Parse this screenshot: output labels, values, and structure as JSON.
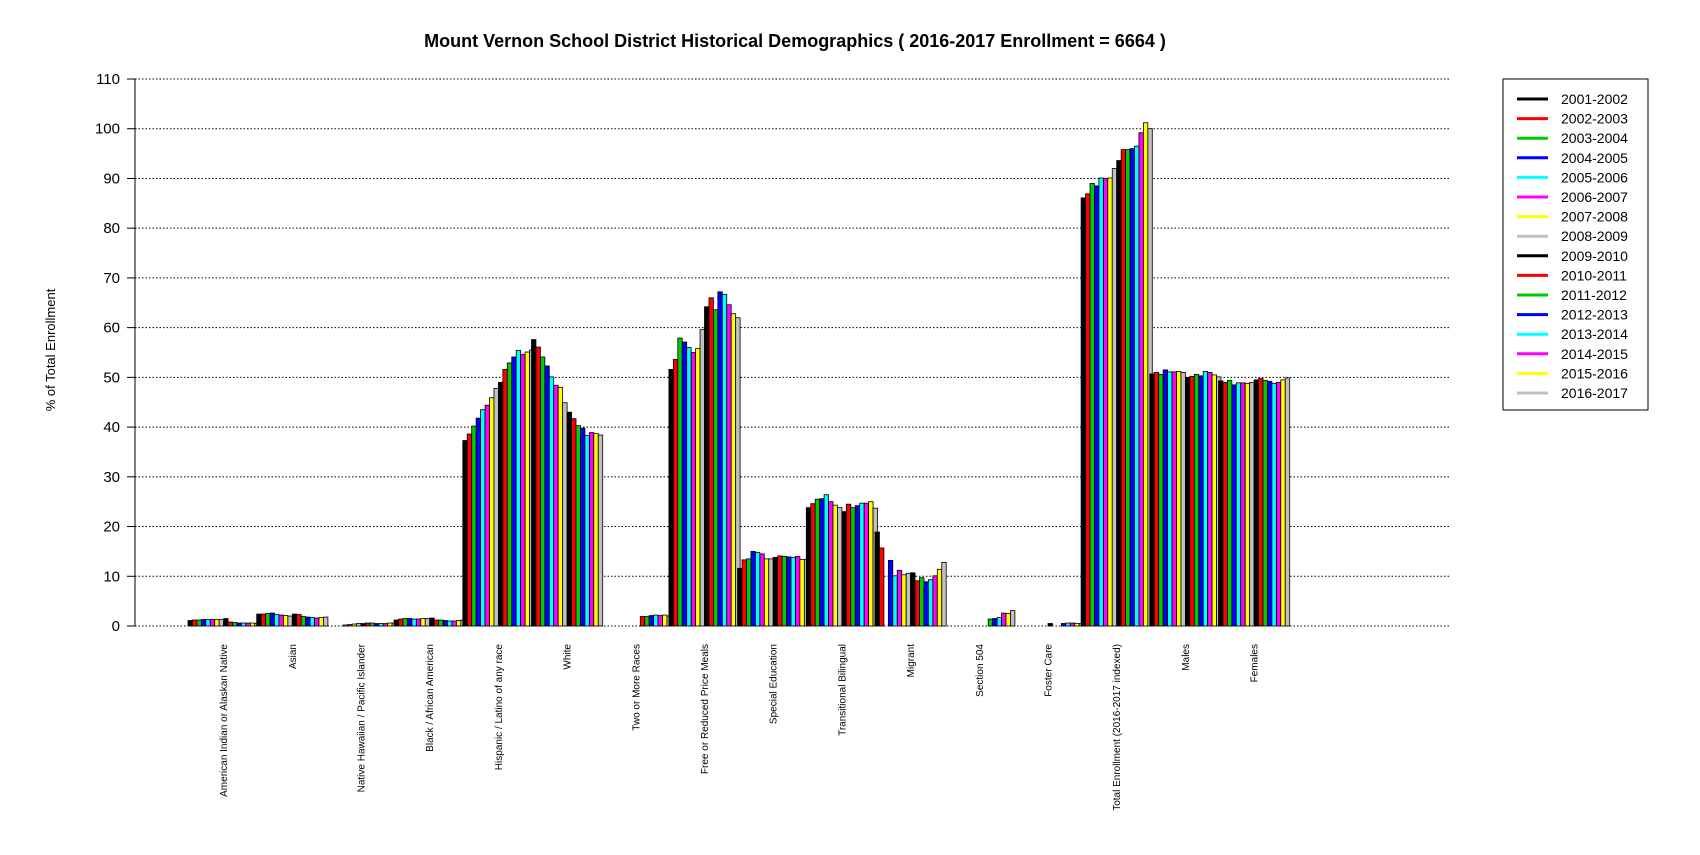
{
  "chart_data": {
    "type": "bar",
    "title": "Mount Vernon School District Historical Demographics  ( 2016-2017 Enrollment =  6664 )",
    "xlabel": "",
    "ylabel": "% of Total Enrollment",
    "ylim": [
      0,
      110
    ],
    "yticks": [
      0,
      10,
      20,
      30,
      40,
      50,
      60,
      70,
      80,
      90,
      100,
      110
    ],
    "grid": "horizontal dotted",
    "legend_position": "right",
    "categories": [
      "American Indian or Alaskan Native",
      "Asian",
      "Native Hawaiian / Pacific Islander",
      "Black / African American",
      "Hispanic / Latino of any race",
      "White",
      "Two or More Races",
      "Free or Reduced Price Meals",
      "Special Education",
      "Transitional Bilingual",
      "Migrant",
      "Section 504",
      "Foster Care",
      "Total Enrollment (2016-2017 indexed)",
      "Males",
      "Females"
    ],
    "series": [
      {
        "name": "2001-2002",
        "color": "#000000",
        "values": [
          1.1,
          2.4,
          0,
          1.2,
          37.3,
          57.6,
          0,
          51.6,
          11.6,
          23.8,
          18.9,
          0,
          0,
          86.1,
          50.7,
          49.3
        ]
      },
      {
        "name": "2002-2003",
        "color": "#ff0000",
        "values": [
          1.2,
          2.4,
          0,
          1.4,
          38.6,
          56.1,
          0,
          53.6,
          13.3,
          24.6,
          15.7,
          0,
          0,
          86.9,
          51.0,
          49.0
        ]
      },
      {
        "name": "2003-2004",
        "color": "#00cc00",
        "values": [
          1.2,
          2.5,
          0,
          1.5,
          40.2,
          54.1,
          0,
          57.9,
          13.5,
          25.5,
          0,
          0,
          0,
          89.0,
          50.6,
          49.4
        ]
      },
      {
        "name": "2004-2005",
        "color": "#0000ff",
        "values": [
          1.3,
          2.6,
          0,
          1.5,
          41.8,
          52.3,
          0,
          57.1,
          15.0,
          25.6,
          13.2,
          0,
          0,
          88.5,
          51.5,
          48.5
        ]
      },
      {
        "name": "2005-2006",
        "color": "#00ffff",
        "values": [
          1.3,
          2.3,
          0.2,
          1.4,
          43.5,
          50.1,
          0,
          56.0,
          14.8,
          26.4,
          10.1,
          0,
          0,
          90.1,
          51.1,
          48.9
        ]
      },
      {
        "name": "2006-2007",
        "color": "#ff00ff",
        "values": [
          1.3,
          2.2,
          0.3,
          1.4,
          44.4,
          48.4,
          0,
          55.0,
          14.5,
          25.0,
          11.2,
          0,
          0,
          90.0,
          51.1,
          48.9
        ]
      },
      {
        "name": "2007-2008",
        "color": "#ffff00",
        "values": [
          1.3,
          2.1,
          0.4,
          1.5,
          45.9,
          48.0,
          0,
          55.8,
          13.5,
          24.3,
          10.3,
          0,
          0,
          90.1,
          51.2,
          48.8
        ]
      },
      {
        "name": "2008-2009",
        "color": "#c0c0c0",
        "values": [
          1.3,
          2.0,
          0.5,
          1.5,
          47.8,
          44.9,
          0,
          59.6,
          13.5,
          23.8,
          10.6,
          0,
          0,
          92.0,
          51.0,
          49.0
        ]
      },
      {
        "name": "2009-2010",
        "color": "#000000",
        "values": [
          1.5,
          2.4,
          0.5,
          1.6,
          49.0,
          43.0,
          0,
          64.2,
          13.8,
          23.0,
          10.7,
          0,
          0.5,
          93.6,
          50.0,
          49.5
        ]
      },
      {
        "name": "2010-2011",
        "color": "#ff0000",
        "values": [
          0.8,
          2.3,
          0.6,
          1.2,
          51.6,
          41.7,
          1.9,
          66.0,
          14.1,
          24.5,
          9.1,
          0,
          0,
          95.8,
          50.2,
          49.8
        ]
      },
      {
        "name": "2011-2012",
        "color": "#00cc00",
        "values": [
          0.7,
          1.9,
          0.6,
          1.2,
          52.9,
          40.3,
          1.9,
          63.6,
          14.0,
          23.8,
          9.7,
          1.4,
          0,
          95.8,
          50.6,
          49.4
        ]
      },
      {
        "name": "2012-2013",
        "color": "#0000ff",
        "values": [
          0.6,
          1.8,
          0.5,
          1.1,
          54.1,
          39.8,
          2.1,
          67.2,
          13.9,
          24.2,
          8.9,
          1.5,
          0.5,
          96.0,
          50.3,
          49.2
        ]
      },
      {
        "name": "2013-2014",
        "color": "#00ffff",
        "values": [
          0.6,
          1.7,
          0.5,
          1.0,
          55.4,
          38.3,
          2.2,
          66.7,
          13.8,
          24.7,
          9.3,
          1.7,
          0.6,
          96.5,
          51.2,
          48.8
        ]
      },
      {
        "name": "2014-2015",
        "color": "#ff00ff",
        "values": [
          0.6,
          1.6,
          0.5,
          1.0,
          54.6,
          38.9,
          2.1,
          64.6,
          14.0,
          24.7,
          10.1,
          2.6,
          0.6,
          99.2,
          51.0,
          49.0
        ]
      },
      {
        "name": "2015-2016",
        "color": "#ffff00",
        "values": [
          0.6,
          1.7,
          0.6,
          1.1,
          55.1,
          38.7,
          2.2,
          62.8,
          13.4,
          25.0,
          11.4,
          2.5,
          0.5,
          101.2,
          50.5,
          49.5
        ]
      },
      {
        "name": "2016-2017",
        "color": "#c0c0c0",
        "values": [
          0.5,
          1.8,
          0.6,
          1.2,
          55.5,
          38.4,
          2.0,
          62.0,
          13.4,
          23.7,
          12.8,
          3.1,
          0.5,
          100.0,
          50.1,
          49.9
        ]
      }
    ]
  }
}
